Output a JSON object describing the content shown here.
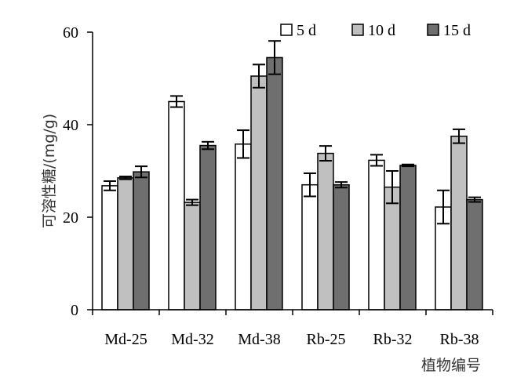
{
  "chart_data": {
    "type": "bar",
    "title": "",
    "xlabel": "植物编号",
    "ylabel": "可溶性糖/(mg/g)",
    "ylim": [
      0,
      60
    ],
    "yticks": [
      0,
      20,
      40,
      60
    ],
    "categories": [
      "Md-25",
      "Md-32",
      "Md-38",
      "Rb-25",
      "Rb-32",
      "Rb-38"
    ],
    "series": [
      {
        "name": "5 d",
        "color": "#ffffff",
        "values": [
          26.8,
          45.0,
          35.8,
          27.0,
          32.3,
          22.2
        ],
        "errors": [
          1.0,
          1.2,
          3.0,
          2.5,
          1.2,
          3.6
        ]
      },
      {
        "name": "10 d",
        "color": "#c0c0c0",
        "values": [
          28.5,
          23.2,
          50.5,
          33.8,
          26.5,
          37.5
        ],
        "errors": [
          0.3,
          0.6,
          2.5,
          1.6,
          3.5,
          1.5
        ]
      },
      {
        "name": "15 d",
        "color": "#6f6f6f",
        "values": [
          29.8,
          35.5,
          54.5,
          27.0,
          31.2,
          23.8
        ],
        "errors": [
          1.2,
          0.8,
          3.6,
          0.6,
          0.2,
          0.5
        ]
      }
    ],
    "legend_position": "top-right",
    "grid": false
  }
}
